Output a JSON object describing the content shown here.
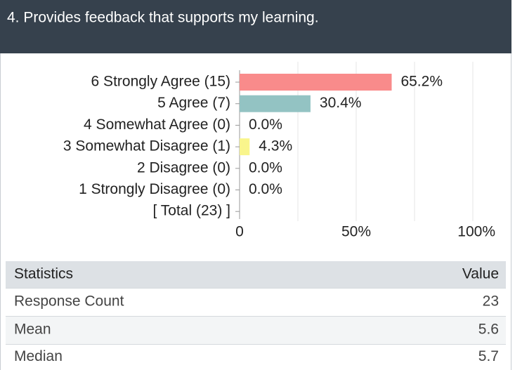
{
  "header": {
    "title": "4. Provides feedback that supports my learning."
  },
  "chart_data": {
    "type": "bar",
    "orientation": "horizontal",
    "categories": [
      "6 Strongly Agree (15)",
      "5 Agree (7)",
      "4 Somewhat Agree (0)",
      "3 Somewhat Disagree (1)",
      "2 Disagree (0)",
      "1 Strongly Disagree (0)",
      "[ Total (23) ]"
    ],
    "values": [
      65.2,
      30.4,
      0,
      4.3,
      0,
      0,
      null
    ],
    "value_labels": [
      "65.2%",
      "30.4%",
      "0.0%",
      "4.3%",
      "0.0%",
      "0.0%",
      null
    ],
    "colors": [
      "#f98b8b",
      "#93c3c3",
      "#f9f58c",
      "#f9f58c",
      "#f9f58c",
      "#f9f58c",
      null
    ],
    "xlim": [
      0,
      100
    ],
    "xticks": [
      0,
      {
        "value": 50,
        "label": "50%"
      },
      {
        "value": 100,
        "label": "100%"
      }
    ],
    "minor_xticks": [
      25,
      75
    ],
    "grid": true
  },
  "stats": {
    "header": [
      "Statistics",
      "Value"
    ],
    "rows": [
      [
        "Response Count",
        23
      ],
      [
        "Mean",
        5.6
      ],
      [
        "Median",
        5.7
      ]
    ]
  }
}
